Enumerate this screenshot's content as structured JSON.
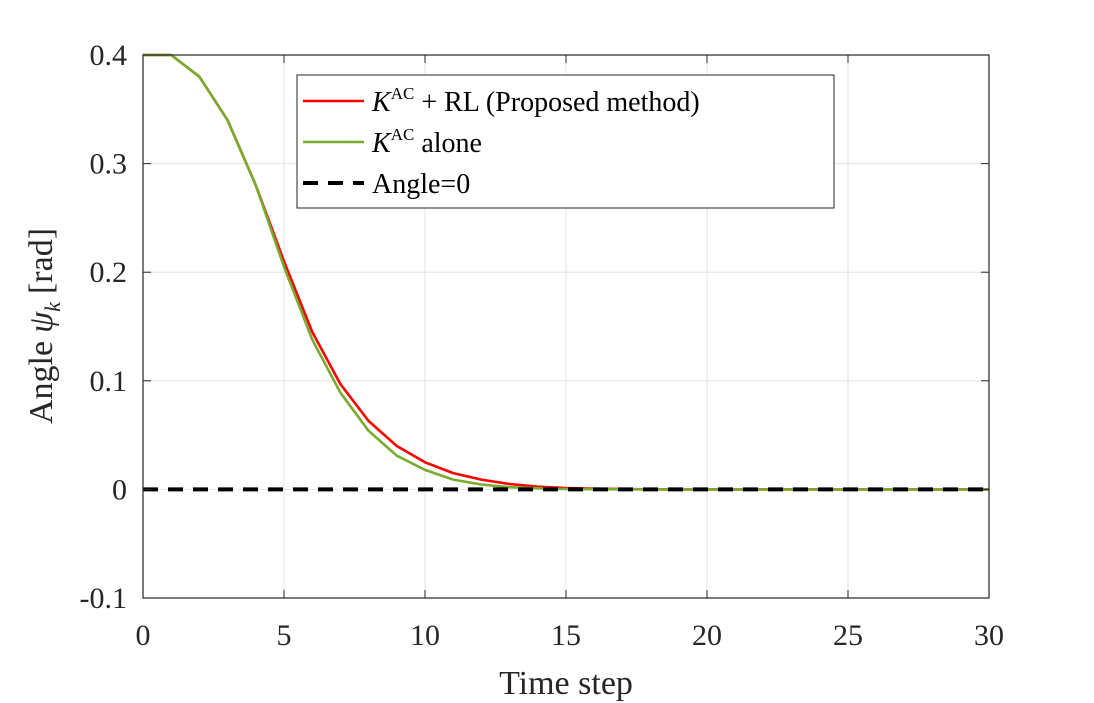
{
  "chart_data": {
    "type": "line",
    "xlabel": "Time step",
    "ylabel": "Angle ψ_k [rad]",
    "ylabel_parts": {
      "word": "Angle",
      "symbol": "ψ",
      "subscript": "k",
      "unit": "[rad]"
    },
    "xlim": [
      0,
      30
    ],
    "ylim": [
      -0.1,
      0.4
    ],
    "xticks": [
      0,
      5,
      10,
      15,
      20,
      25,
      30
    ],
    "xtick_labels": [
      "0",
      "5",
      "10",
      "15",
      "20",
      "25",
      "30"
    ],
    "yticks": [
      -0.1,
      0,
      0.1,
      0.2,
      0.3,
      0.4
    ],
    "ytick_labels": [
      "-0.1",
      "0",
      "0.1",
      "0.2",
      "0.3",
      "0.4"
    ],
    "grid": true,
    "legend_position": "top-right",
    "x": [
      0,
      1,
      2,
      3,
      4,
      5,
      6,
      7,
      8,
      9,
      10,
      11,
      12,
      13,
      14,
      15,
      16,
      17,
      18,
      19,
      20,
      21,
      22,
      23,
      24,
      25,
      26,
      27,
      28,
      29,
      30
    ],
    "series": [
      {
        "name": "K^AC + RL (Proposed method)",
        "label_parts": {
          "base": "K",
          "sup": "AC",
          "rest": " + RL (Proposed method)"
        },
        "color": "#ff0000",
        "style": "solid",
        "values": [
          0.4,
          0.4,
          0.38,
          0.34,
          0.28,
          0.21,
          0.145,
          0.097,
          0.063,
          0.04,
          0.025,
          0.015,
          0.009,
          0.005,
          0.0025,
          0.0012,
          0.0006,
          0.0003,
          0.0001,
          0,
          0,
          0,
          0,
          0,
          0,
          0,
          0,
          0,
          0,
          0,
          0
        ]
      },
      {
        "name": "K^AC alone",
        "label_parts": {
          "base": "K",
          "sup": "AC",
          "rest": " alone"
        },
        "color": "#77ac30",
        "style": "solid",
        "values": [
          0.4,
          0.4,
          0.38,
          0.34,
          0.28,
          0.205,
          0.138,
          0.089,
          0.054,
          0.031,
          0.018,
          0.009,
          0.0045,
          0.002,
          0.001,
          0.0004,
          0.0002,
          0.0001,
          0,
          0,
          0,
          0,
          0,
          0,
          0,
          0,
          0,
          0,
          0,
          0,
          0
        ]
      },
      {
        "name": "Angle=0",
        "label_parts": {
          "base": "",
          "sup": "",
          "rest": "Angle=0"
        },
        "color": "#000000",
        "style": "dashed",
        "values": [
          0,
          0,
          0,
          0,
          0,
          0,
          0,
          0,
          0,
          0,
          0,
          0,
          0,
          0,
          0,
          0,
          0,
          0,
          0,
          0,
          0,
          0,
          0,
          0,
          0,
          0,
          0,
          0,
          0,
          0,
          0
        ]
      }
    ]
  }
}
